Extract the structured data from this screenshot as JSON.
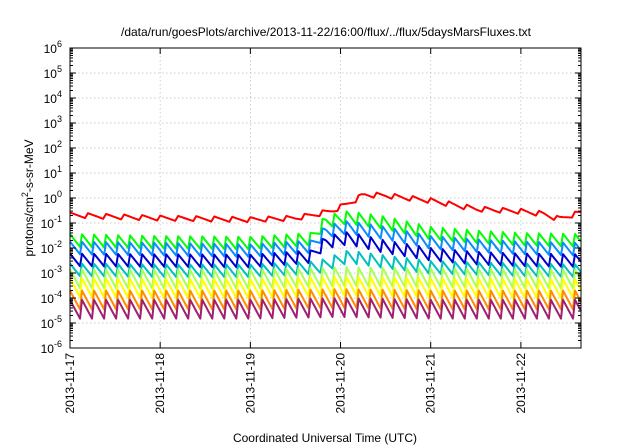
{
  "chart_data": {
    "type": "line",
    "title": "/data/run/goesPlots/archive/2013-11-22/16:00/flux/../flux/5daysMarsFluxes.txt",
    "xlabel": "Coordinated Universal Time (UTC)",
    "ylabel": {
      "base": "protons/cm",
      "sup": "2",
      "rest": "-s-sr-MeV"
    },
    "y_scale": "log",
    "ylim": [
      1e-06,
      1000000.0
    ],
    "xlim": [
      "2013-11-17T00:00",
      "2013-11-22T16:00"
    ],
    "x_ticks": [
      "2013-11-17",
      "2013-11-18",
      "2013-11-19",
      "2013-11-20",
      "2013-11-21",
      "2013-11-22"
    ],
    "y_ticks": [
      {
        "value": 1e-06,
        "base": "10",
        "exp": "-6"
      },
      {
        "value": 1e-05,
        "base": "10",
        "exp": "-5"
      },
      {
        "value": 0.0001,
        "base": "10",
        "exp": "-4"
      },
      {
        "value": 0.001,
        "base": "10",
        "exp": "-3"
      },
      {
        "value": 0.01,
        "base": "10",
        "exp": "-2"
      },
      {
        "value": 0.1,
        "base": "10",
        "exp": "-1"
      },
      {
        "value": 1,
        "base": "10",
        "exp": "0"
      },
      {
        "value": 10,
        "base": "10",
        "exp": "1"
      },
      {
        "value": 100,
        "base": "10",
        "exp": "2"
      },
      {
        "value": 1000,
        "base": "10",
        "exp": "3"
      },
      {
        "value": 10000,
        "base": "10",
        "exp": "4"
      },
      {
        "value": 100000,
        "base": "10",
        "exp": "5"
      },
      {
        "value": 1000000,
        "base": "10",
        "exp": "6"
      }
    ],
    "grid": true,
    "legend": "none",
    "series": [
      {
        "color": "#ff0000",
        "points": [
          [
            "2013-11-17T00:00",
            0.2
          ],
          [
            "2013-11-17T12:00",
            0.17
          ],
          [
            "2013-11-18T00:00",
            0.15
          ],
          [
            "2013-11-18T12:00",
            0.14
          ],
          [
            "2013-11-19T00:00",
            0.13
          ],
          [
            "2013-11-19T12:00",
            0.15
          ],
          [
            "2013-11-19T18:00",
            0.22
          ],
          [
            "2013-11-19T22:00",
            0.3
          ],
          [
            "2013-11-20T04:00",
            0.8
          ],
          [
            "2013-11-20T06:00",
            1.3
          ],
          [
            "2013-11-20T12:00",
            1.2
          ],
          [
            "2013-11-21T00:00",
            0.75
          ],
          [
            "2013-11-21T12:00",
            0.35
          ],
          [
            "2013-11-22T00:00",
            0.28
          ],
          [
            "2013-11-22T06:00",
            0.22
          ],
          [
            "2013-11-22T10:00",
            0.14
          ],
          [
            "2013-11-22T16:00",
            0.25
          ]
        ]
      },
      {
        "color": "#00ff00",
        "points": [
          [
            "2013-11-17T00:00",
            0.018
          ],
          [
            "2013-11-18T00:00",
            0.015
          ],
          [
            "2013-11-19T00:00",
            0.014
          ],
          [
            "2013-11-19T16:00",
            0.02
          ],
          [
            "2013-11-19T20:00",
            0.1
          ],
          [
            "2013-11-20T02:00",
            0.15
          ],
          [
            "2013-11-20T12:00",
            0.09
          ],
          [
            "2013-11-21T00:00",
            0.035
          ],
          [
            "2013-11-21T12:00",
            0.025
          ],
          [
            "2013-11-22T00:00",
            0.02
          ],
          [
            "2013-11-22T16:00",
            0.018
          ]
        ]
      },
      {
        "color": "#0a8cff",
        "points": [
          [
            "2013-11-17T00:00",
            0.009
          ],
          [
            "2013-11-18T00:00",
            0.008
          ],
          [
            "2013-11-19T00:00",
            0.007
          ],
          [
            "2013-11-19T16:00",
            0.01
          ],
          [
            "2013-11-19T20:00",
            0.04
          ],
          [
            "2013-11-20T02:00",
            0.06
          ],
          [
            "2013-11-20T12:00",
            0.035
          ],
          [
            "2013-11-21T00:00",
            0.015
          ],
          [
            "2013-11-21T12:00",
            0.011
          ],
          [
            "2013-11-22T00:00",
            0.009
          ],
          [
            "2013-11-22T16:00",
            0.008
          ]
        ]
      },
      {
        "color": "#0000cc",
        "points": [
          [
            "2013-11-17T00:00",
            0.003
          ],
          [
            "2013-11-18T00:00",
            0.0028
          ],
          [
            "2013-11-19T00:00",
            0.0027
          ],
          [
            "2013-11-19T16:00",
            0.004
          ],
          [
            "2013-11-19T20:00",
            0.015
          ],
          [
            "2013-11-20T02:00",
            0.022
          ],
          [
            "2013-11-20T12:00",
            0.01
          ],
          [
            "2013-11-21T00:00",
            0.005
          ],
          [
            "2013-11-21T12:00",
            0.0035
          ],
          [
            "2013-11-22T00:00",
            0.003
          ],
          [
            "2013-11-22T16:00",
            0.0028
          ]
        ]
      },
      {
        "color": "#00c0c0",
        "points": [
          [
            "2013-11-17T00:00",
            0.0012
          ],
          [
            "2013-11-18T00:00",
            0.0011
          ],
          [
            "2013-11-19T00:00",
            0.0011
          ],
          [
            "2013-11-19T18:00",
            0.0015
          ],
          [
            "2013-11-20T02:00",
            0.004
          ],
          [
            "2013-11-20T12:00",
            0.0025
          ],
          [
            "2013-11-21T00:00",
            0.0015
          ],
          [
            "2013-11-22T00:00",
            0.0012
          ],
          [
            "2013-11-22T16:00",
            0.0011
          ]
        ]
      },
      {
        "color": "#aaff55",
        "points": [
          [
            "2013-11-17T00:00",
            0.0005
          ],
          [
            "2013-11-18T00:00",
            0.00048
          ],
          [
            "2013-11-19T00:00",
            0.00047
          ],
          [
            "2013-11-20T00:00",
            0.0006
          ],
          [
            "2013-11-21T00:00",
            0.00055
          ],
          [
            "2013-11-22T00:00",
            0.0005
          ],
          [
            "2013-11-22T16:00",
            0.00048
          ]
        ]
      },
      {
        "color": "#ffff00",
        "points": [
          [
            "2013-11-17T00:00",
            0.00022
          ],
          [
            "2013-11-18T00:00",
            0.0002
          ],
          [
            "2013-11-19T00:00",
            0.0002
          ],
          [
            "2013-11-20T00:00",
            0.00025
          ],
          [
            "2013-11-21T00:00",
            0.00022
          ],
          [
            "2013-11-22T00:00",
            0.0002
          ],
          [
            "2013-11-22T16:00",
            0.0002
          ]
        ]
      },
      {
        "color": "#ff8c00",
        "points": [
          [
            "2013-11-17T00:00",
            7e-05
          ],
          [
            "2013-11-18T00:00",
            7e-05
          ],
          [
            "2013-11-19T00:00",
            7e-05
          ],
          [
            "2013-11-20T00:00",
            8e-05
          ],
          [
            "2013-11-21T00:00",
            7e-05
          ],
          [
            "2013-11-22T00:00",
            7e-05
          ],
          [
            "2013-11-22T16:00",
            7e-05
          ]
        ]
      },
      {
        "color": "#a02070",
        "points": [
          [
            "2013-11-17T00:00",
            3e-05
          ],
          [
            "2013-11-18T00:00",
            3e-05
          ],
          [
            "2013-11-19T00:00",
            3e-05
          ],
          [
            "2013-11-20T00:00",
            3.5e-05
          ],
          [
            "2013-11-21T00:00",
            3e-05
          ],
          [
            "2013-11-22T00:00",
            3e-05
          ],
          [
            "2013-11-22T16:00",
            3e-05
          ]
        ]
      }
    ]
  }
}
